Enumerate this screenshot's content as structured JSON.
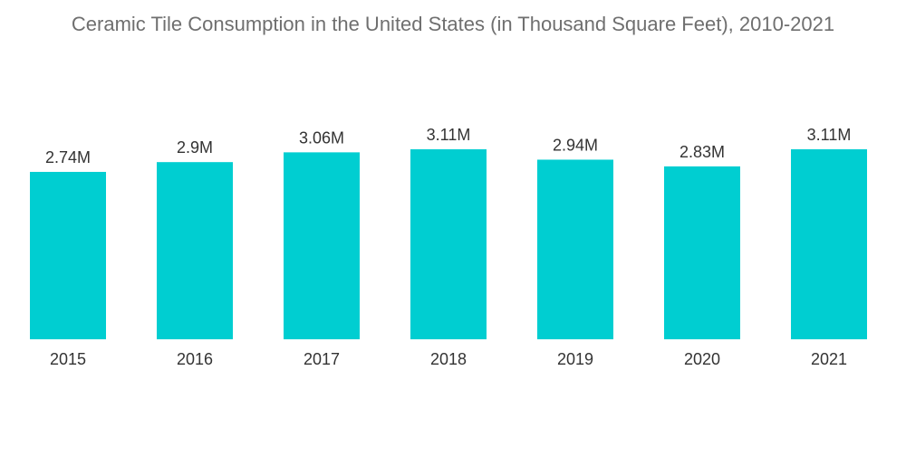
{
  "chart_data": {
    "type": "bar",
    "title": "Ceramic Tile Consumption in the United States (in Thousand Square Feet), 2010-2021",
    "categories": [
      "2015",
      "2016",
      "2017",
      "2018",
      "2019",
      "2020",
      "2021"
    ],
    "values": [
      2.74,
      2.9,
      3.06,
      3.11,
      2.94,
      2.83,
      3.11
    ],
    "data_labels": [
      "2.74M",
      "2.9M",
      "3.06M",
      "3.11M",
      "2.94M",
      "2.83M",
      "3.11M"
    ],
    "unit": "M",
    "xlabel": "",
    "ylabel": "",
    "ylim": [
      0,
      3.11
    ],
    "grid": false,
    "legend": "none",
    "bar_color": "#00CED1"
  }
}
